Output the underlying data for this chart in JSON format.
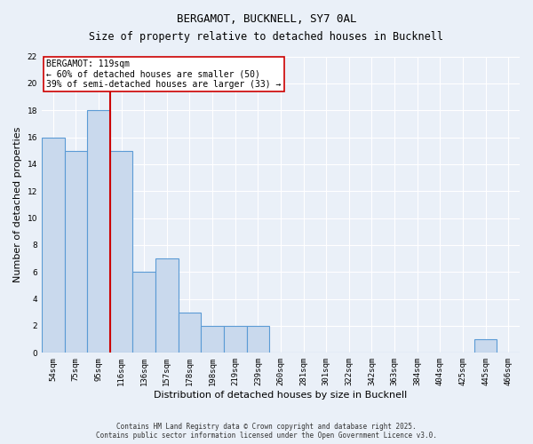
{
  "title": "BERGAMOT, BUCKNELL, SY7 0AL",
  "subtitle": "Size of property relative to detached houses in Bucknell",
  "xlabel": "Distribution of detached houses by size in Bucknell",
  "ylabel": "Number of detached properties",
  "categories": [
    "54sqm",
    "75sqm",
    "95sqm",
    "116sqm",
    "136sqm",
    "157sqm",
    "178sqm",
    "198sqm",
    "219sqm",
    "239sqm",
    "260sqm",
    "281sqm",
    "301sqm",
    "322sqm",
    "342sqm",
    "363sqm",
    "384sqm",
    "404sqm",
    "425sqm",
    "445sqm",
    "466sqm"
  ],
  "values": [
    16,
    15,
    18,
    15,
    6,
    7,
    3,
    2,
    2,
    2,
    0,
    0,
    0,
    0,
    0,
    0,
    0,
    0,
    0,
    1,
    0
  ],
  "bar_color": "#c9d9ed",
  "bar_edge_color": "#5b9bd5",
  "background_color": "#eaf0f8",
  "grid_color": "#ffffff",
  "vline_color": "#cc0000",
  "vline_x_index": 3,
  "ylim": [
    0,
    22
  ],
  "yticks": [
    0,
    2,
    4,
    6,
    8,
    10,
    12,
    14,
    16,
    18,
    20,
    22
  ],
  "annotation_text": "BERGAMOT: 119sqm\n← 60% of detached houses are smaller (50)\n39% of semi-detached houses are larger (33) →",
  "footer_line1": "Contains HM Land Registry data © Crown copyright and database right 2025.",
  "footer_line2": "Contains public sector information licensed under the Open Government Licence v3.0.",
  "title_fontsize": 9,
  "subtitle_fontsize": 8.5,
  "tick_fontsize": 6.5,
  "ylabel_fontsize": 8,
  "xlabel_fontsize": 8,
  "annotation_fontsize": 7,
  "footer_fontsize": 5.5
}
